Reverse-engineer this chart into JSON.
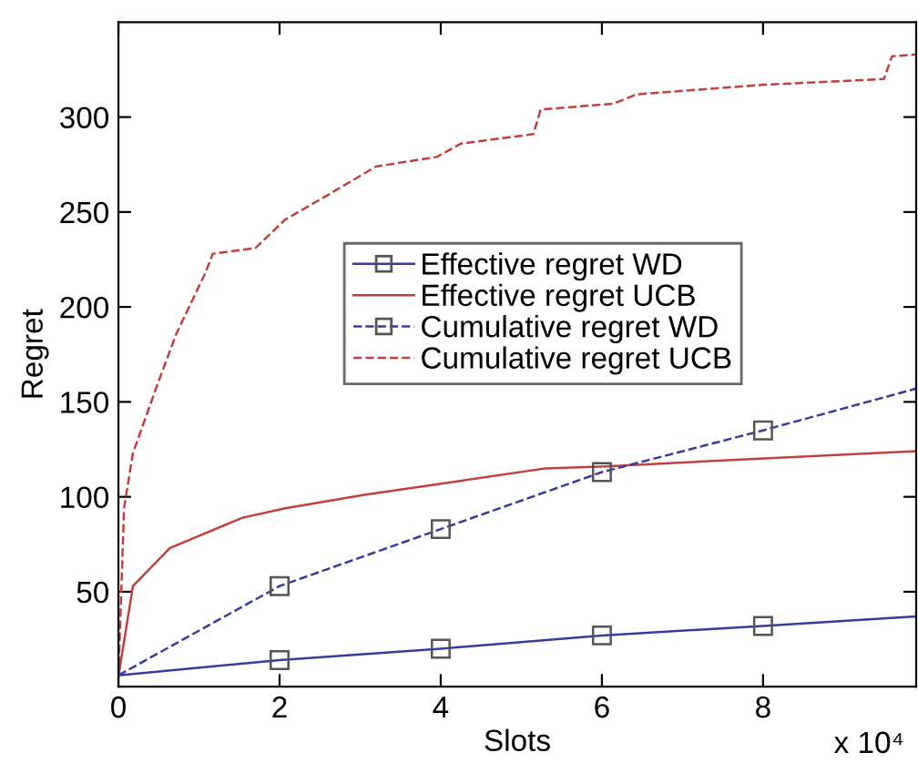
{
  "chart_data": {
    "type": "line",
    "xlabel": "Slots",
    "ylabel": "Regret",
    "annotations": [
      "x 10⁴"
    ],
    "xlim": [
      0,
      9.9
    ],
    "xticks": [
      0,
      2,
      4,
      6,
      8
    ],
    "ylim": [
      0,
      350
    ],
    "yticks": [
      50,
      100,
      150,
      200,
      250,
      300
    ],
    "grid": false,
    "legend": "top right",
    "series": [
      {
        "name": "Effective regret WD",
        "color": "#3a3a9a",
        "line_style": "solid",
        "marker": "square",
        "x": [
          0,
          2,
          4,
          6,
          8,
          9.9
        ],
        "values": [
          6,
          14,
          20,
          27,
          32,
          37
        ]
      },
      {
        "name": "Effective regret UCB",
        "color": "#c04040",
        "line_style": "solid",
        "marker": "none",
        "x": [
          0,
          0.04,
          0.18,
          0.64,
          1.54,
          2.07,
          3.05,
          5.3,
          6.05,
          7.9,
          9.9
        ],
        "values": [
          5,
          16,
          53,
          73,
          89,
          94,
          101,
          115,
          116,
          120,
          124
        ]
      },
      {
        "name": "Cumulative regret WD",
        "color": "#3a3a9a",
        "line_style": "dashed",
        "marker": "square",
        "x": [
          0,
          2,
          4,
          6,
          8,
          9.9
        ],
        "values": [
          6,
          53,
          83,
          113,
          135,
          157
        ]
      },
      {
        "name": "Cumulative regret UCB",
        "color": "#c04040",
        "line_style": "dashed",
        "marker": "none",
        "x": [
          0,
          0.07,
          0.18,
          0.5,
          0.72,
          1.08,
          1.17,
          1.7,
          2.07,
          2.6,
          3.2,
          3.95,
          4.25,
          5.15,
          5.24,
          6.14,
          6.43,
          8.0,
          9.5,
          9.6,
          9.9
        ],
        "values": [
          5,
          94,
          123,
          161,
          186,
          218,
          228,
          231,
          246,
          259,
          274,
          279,
          286,
          291,
          304,
          307,
          312,
          317,
          320,
          332,
          333
        ]
      }
    ]
  }
}
